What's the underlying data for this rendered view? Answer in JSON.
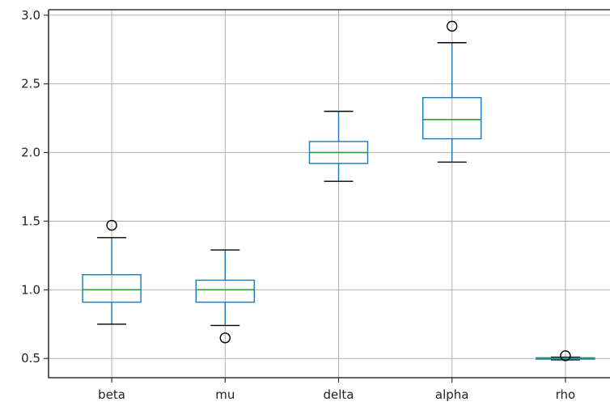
{
  "chart_data": {
    "type": "box",
    "categories": [
      "beta",
      "mu",
      "delta",
      "alpha",
      "rho"
    ],
    "boxes": [
      {
        "name": "beta",
        "whislo": 0.75,
        "q1": 0.91,
        "med": 1.0,
        "q3": 1.11,
        "whishi": 1.38,
        "fliers": [
          1.47
        ]
      },
      {
        "name": "mu",
        "whislo": 0.74,
        "q1": 0.91,
        "med": 1.0,
        "q3": 1.07,
        "whishi": 1.29,
        "fliers": [
          0.65
        ]
      },
      {
        "name": "delta",
        "whislo": 1.79,
        "q1": 1.92,
        "med": 2.0,
        "q3": 2.08,
        "whishi": 2.3,
        "fliers": []
      },
      {
        "name": "alpha",
        "whislo": 1.93,
        "q1": 2.1,
        "med": 2.24,
        "q3": 2.4,
        "whishi": 2.8,
        "fliers": [
          2.92
        ]
      },
      {
        "name": "rho",
        "whislo": 0.49,
        "q1": 0.495,
        "med": 0.5,
        "q3": 0.505,
        "whishi": 0.51,
        "fliers": [
          0.52
        ]
      }
    ],
    "yticks": [
      "0.5",
      "1.0",
      "1.5",
      "2.0",
      "2.5",
      "3.0"
    ],
    "ytick_values": [
      0.5,
      1.0,
      1.5,
      2.0,
      2.5,
      3.0
    ],
    "ylim": [
      0.36,
      3.04
    ],
    "grid": true,
    "colors": {
      "box": "#1f77b4",
      "median": "#2ca02c",
      "whisker": "#000000",
      "flier": "#000000",
      "grid": "#b0b0b0"
    }
  }
}
